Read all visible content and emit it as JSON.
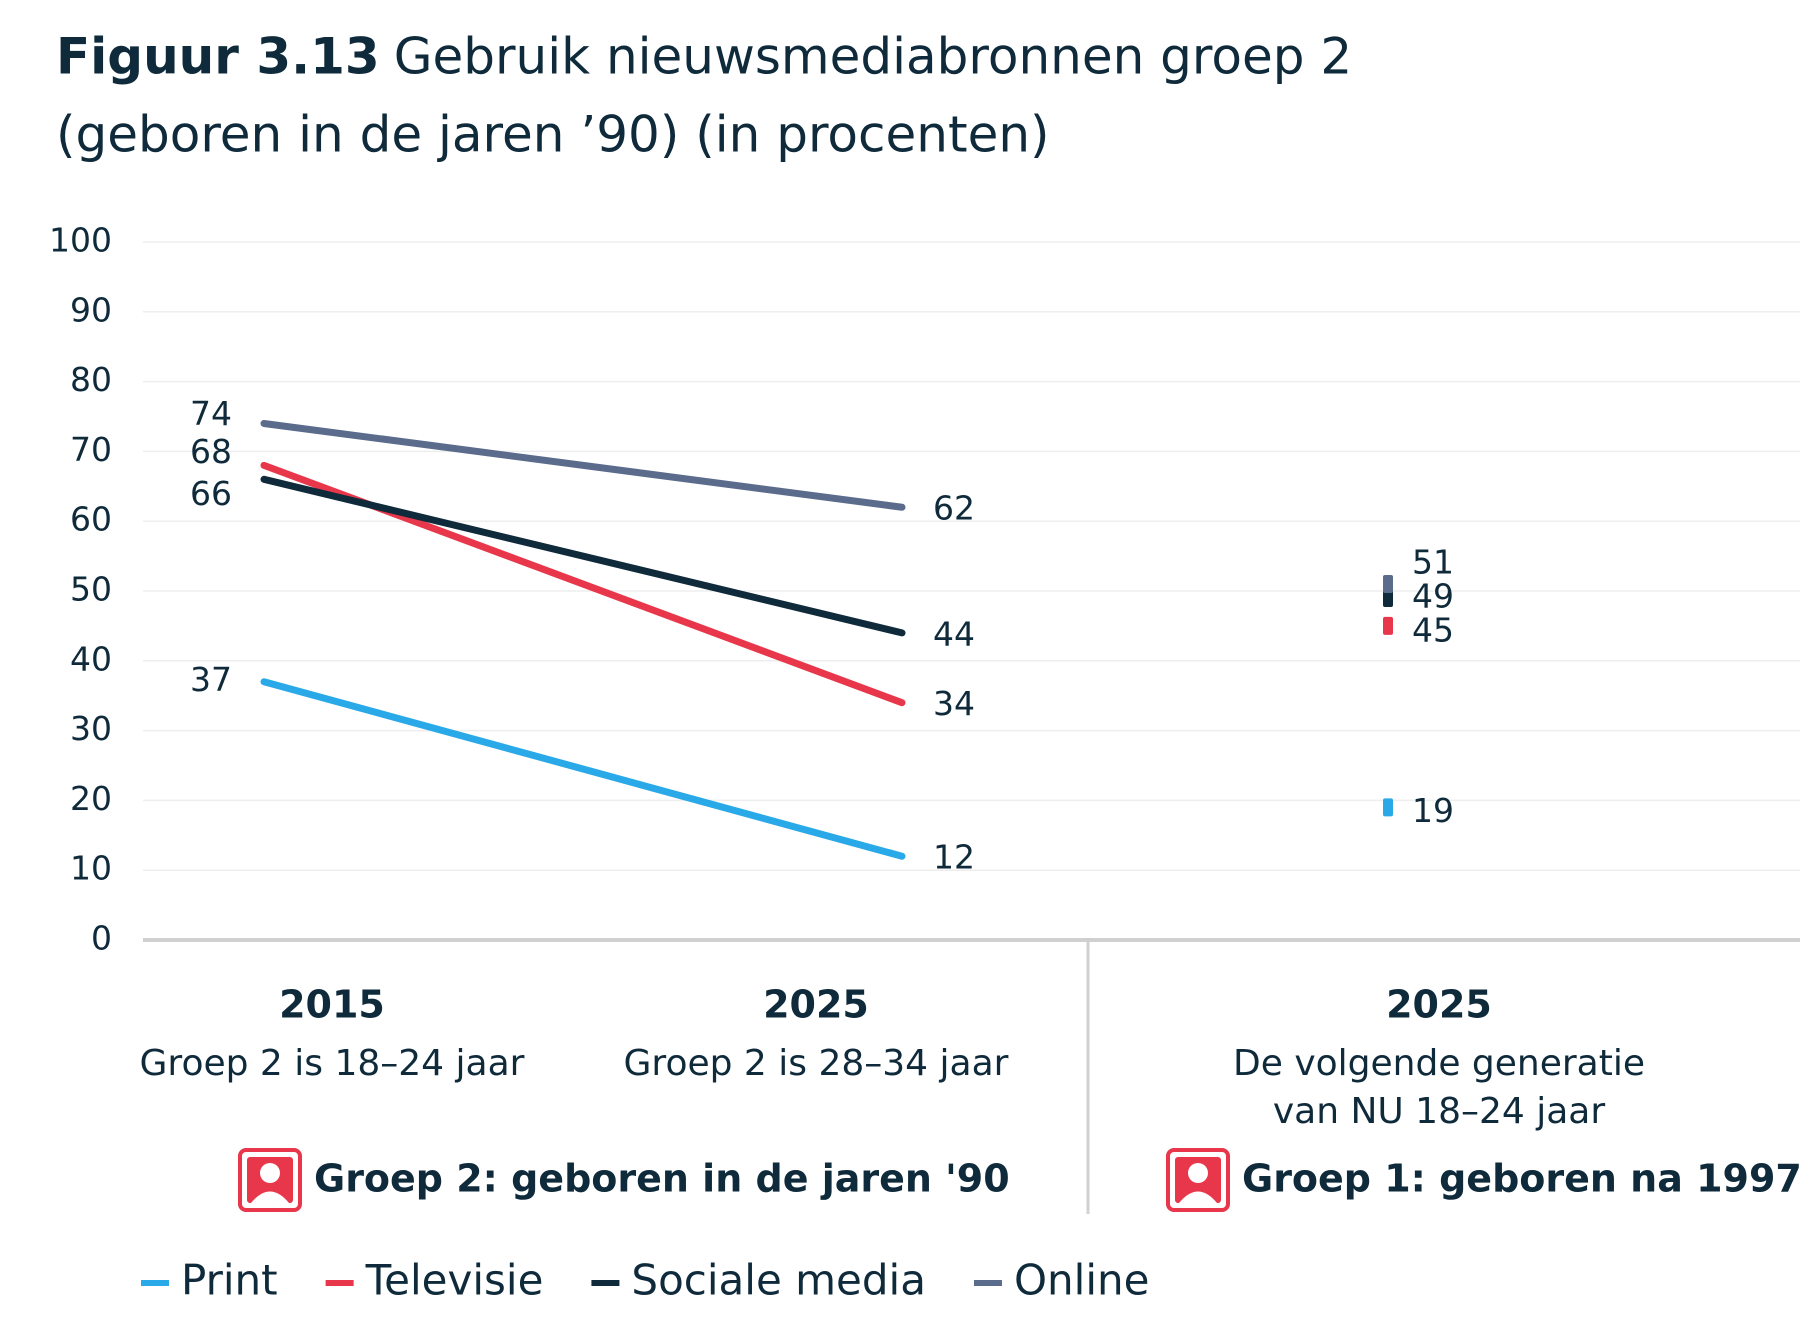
{
  "chart_data": {
    "type": "line",
    "title_prefix": "Figuur 3.13",
    "title": "Gebruik nieuwsmediabronnen groep 2",
    "subtitle": "(geboren in de jaren ’90) (in procenten)",
    "categories": [
      "2015",
      "2025",
      "2025"
    ],
    "category_notes": [
      "Groep 2 is 18–24 jaar",
      "Groep 2 is 28–34 jaar",
      "De volgende generatie van NU 18–24 jaar"
    ],
    "groups": [
      "Groep 2: geboren in de jaren '90",
      "Groep 1: geboren na 1997"
    ],
    "series": [
      {
        "name": "Print",
        "color": "#2aa9e8",
        "values": [
          37,
          12,
          19
        ]
      },
      {
        "name": "Televisie",
        "color": "#e8374a",
        "values": [
          68,
          34,
          45
        ]
      },
      {
        "name": "Sociale media",
        "color": "#0f2a3a",
        "values": [
          66,
          44,
          49
        ]
      },
      {
        "name": "Online",
        "color": "#5b6b8c",
        "values": [
          74,
          62,
          51
        ]
      }
    ],
    "ylim": [
      0,
      100
    ],
    "yticks": [
      0,
      10,
      20,
      30,
      40,
      50,
      60,
      70,
      80,
      90,
      100
    ],
    "grid": true,
    "legend": "bottom-left"
  }
}
